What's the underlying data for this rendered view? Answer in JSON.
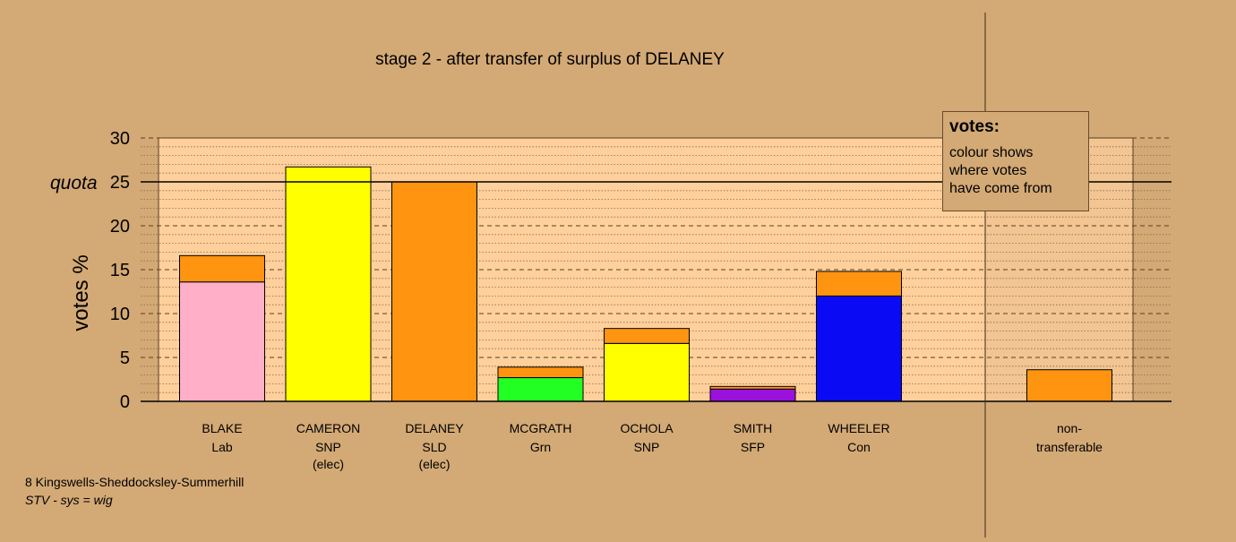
{
  "footer": {
    "constituency": "8 Kingswells-Sheddocksley-Summerhill",
    "system": "STV - sys = wig"
  },
  "legend": {
    "title": "votes:",
    "lines": [
      "colour shows",
      "where votes",
      "have come from"
    ]
  },
  "colors": {
    "background": "#D3A975",
    "plot_fill": "#FFD09B",
    "Lab": "#FFB0C8",
    "SNP": "#FFFF00",
    "SLD": "#FF9410",
    "Grn": "#22FF22",
    "SFP": "#9A11DD",
    "Con": "#0A0AF5"
  },
  "chart_data": {
    "type": "bar",
    "stacked": true,
    "title": "stage 2 - after transfer of surplus of DELANEY",
    "ylabel": "votes %",
    "xlabel": "",
    "ylim": [
      0,
      30
    ],
    "yticks": [
      0,
      5,
      10,
      15,
      20,
      25,
      30
    ],
    "quota": 25,
    "quota_label": "quota",
    "grid": "dotted horizontal, dashed major",
    "legend_placement": "top-right",
    "categories": [
      {
        "name": "BLAKE",
        "party": "Lab",
        "note": ""
      },
      {
        "name": "CAMERON",
        "party": "SNP",
        "note": "(elec)"
      },
      {
        "name": "DELANEY",
        "party": "SLD",
        "note": "(elec)"
      },
      {
        "name": "MCGRATH",
        "party": "Grn",
        "note": ""
      },
      {
        "name": "OCHOLA",
        "party": "SNP",
        "note": ""
      },
      {
        "name": "SMITH",
        "party": "SFP",
        "note": ""
      },
      {
        "name": "WHEELER",
        "party": "Con",
        "note": ""
      }
    ],
    "non_transferable": {
      "line1": "non-",
      "line2": "transferable",
      "value": 3.6
    },
    "series": [
      {
        "source": "Lab",
        "values": [
          13.6,
          0,
          0,
          0,
          0,
          0,
          0
        ]
      },
      {
        "source": "SNP",
        "values": [
          0,
          26.7,
          0,
          0,
          6.6,
          0,
          0
        ]
      },
      {
        "source": "SLD",
        "values": [
          3.0,
          0,
          25.0,
          1.2,
          1.7,
          0.3,
          2.8
        ]
      },
      {
        "source": "Grn",
        "values": [
          0,
          0,
          0,
          2.7,
          0,
          0,
          0
        ]
      },
      {
        "source": "SFP",
        "values": [
          0,
          0,
          0,
          0,
          0,
          1.4,
          0
        ]
      },
      {
        "source": "Con",
        "values": [
          0,
          0,
          0,
          0,
          0,
          0,
          12.0
        ]
      }
    ],
    "stack_order": {
      "BLAKE": [
        "Lab",
        "SLD"
      ],
      "CAMERON": [
        "SNP"
      ],
      "DELANEY": [
        "SLD"
      ],
      "MCGRATH": [
        "Grn",
        "SLD"
      ],
      "OCHOLA": [
        "SNP",
        "SLD"
      ],
      "SMITH": [
        "SFP",
        "SLD"
      ],
      "WHEELER": [
        "Con",
        "SLD"
      ]
    }
  }
}
